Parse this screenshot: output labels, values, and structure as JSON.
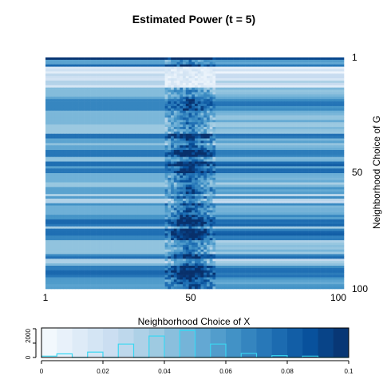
{
  "chart_data": [
    {
      "type": "heatmap",
      "title": "Estimated Power (t = 5)",
      "xlabel": "Neighborhood Choice of X",
      "ylabel": "Neighborhood Choice of G",
      "x_ticks": [
        "1",
        "50",
        "100"
      ],
      "y_ticks": [
        "1",
        "50",
        "100"
      ],
      "x_range": [
        1,
        100
      ],
      "y_range": [
        1,
        100
      ],
      "y_reversed": true,
      "colormap": "Blues",
      "value_range": [
        0,
        0.1
      ],
      "peak_x_range": [
        41,
        57
      ],
      "note_values": "cell values not printed; estimated power roughly 0.02–0.1 by row, higher in the central X band"
    },
    {
      "type": "bar",
      "subtype": "color-key-histogram",
      "x_range": [
        0,
        0.1
      ],
      "x_ticks": [
        "0",
        "0.02",
        "0.04",
        "0.06",
        "0.08",
        "0.1"
      ],
      "y_ticks": [
        "0",
        "2000"
      ],
      "bins": [
        0,
        0.005,
        0.01,
        0.015,
        0.02,
        0.025,
        0.03,
        0.035,
        0.04,
        0.045,
        0.05,
        0.055,
        0.06,
        0.065,
        0.07,
        0.075,
        0.08,
        0.085,
        0.09,
        0.095,
        0.1
      ],
      "counts": [
        150,
        400,
        0,
        600,
        0,
        1500,
        0,
        2400,
        0,
        3000,
        0,
        1500,
        0,
        450,
        0,
        200,
        0,
        150,
        0,
        0
      ],
      "outline_color": "#3ad7f2"
    }
  ],
  "colors": {
    "blues": [
      "#f7fbff",
      "#deebf7",
      "#c6dbef",
      "#9ecae1",
      "#6baed6",
      "#4292c6",
      "#2171b5",
      "#08519c",
      "#08306b"
    ]
  }
}
